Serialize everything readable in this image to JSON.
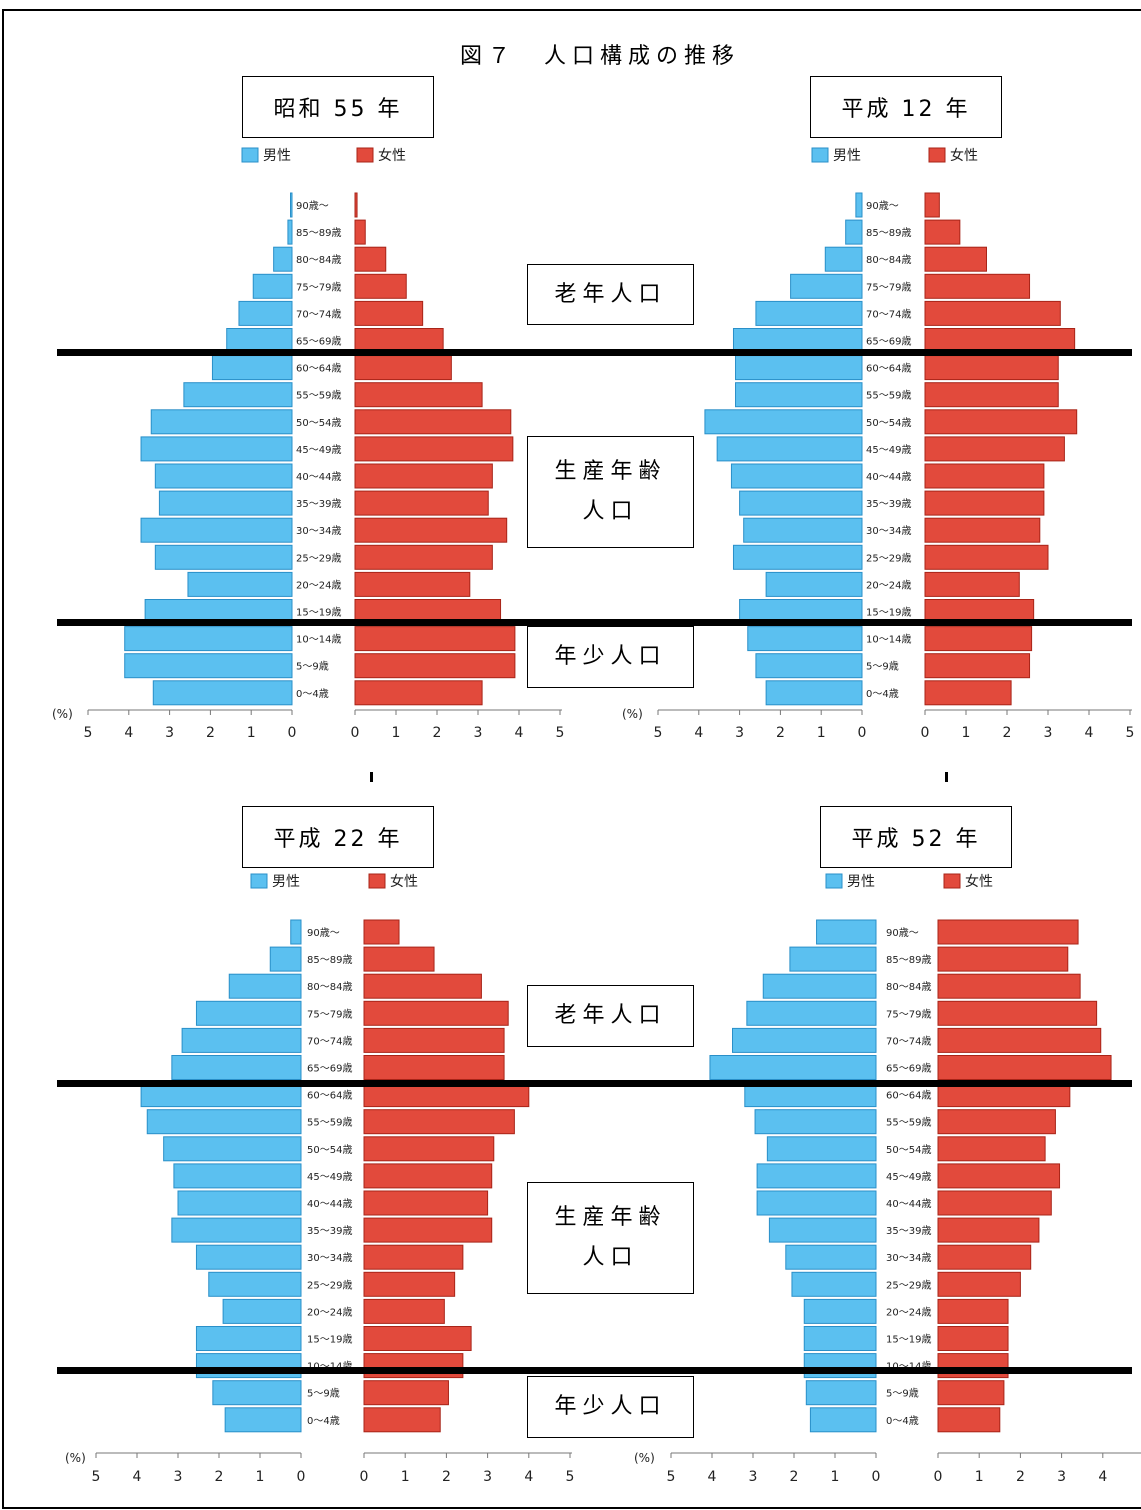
{
  "title": "図７　人口構成の推移",
  "legend": {
    "male": "男性",
    "female": "女性"
  },
  "age_labels": {
    "oldest": "老年人口",
    "working_1": "生産年齢",
    "working_2": "人口",
    "young": "年少人口"
  },
  "colors": {
    "male": "#5bc0f0",
    "male_stroke": "#2a8fc8",
    "female": "#e24a3c",
    "female_stroke": "#a82418",
    "axis": "#777777"
  },
  "chart_data": [
    {
      "type": "bar",
      "title": "昭和 55 年",
      "categories": [
        "90歳～",
        "85～89歳",
        "80～84歳",
        "75～79歳",
        "70～74歳",
        "65～69歳",
        "60～64歳",
        "55～59歳",
        "50～54歳",
        "45～49歳",
        "40～44歳",
        "35～39歳",
        "30～34歳",
        "25～29歳",
        "20～24歳",
        "15～19歳",
        "10～14歳",
        "5～9歳",
        "0～4歳"
      ],
      "series": [
        {
          "name": "男性",
          "values": [
            0.02,
            0.1,
            0.45,
            0.95,
            1.3,
            1.6,
            1.95,
            2.65,
            3.45,
            3.7,
            3.35,
            3.25,
            3.7,
            3.35,
            2.55,
            3.6,
            4.1,
            4.1,
            3.4
          ]
        },
        {
          "name": "女性",
          "values": [
            0.05,
            0.25,
            0.75,
            1.25,
            1.65,
            2.15,
            2.35,
            3.1,
            3.8,
            3.85,
            3.35,
            3.25,
            3.7,
            3.35,
            2.8,
            3.55,
            3.9,
            3.9,
            3.1
          ]
        }
      ],
      "xlabel": "(%)",
      "ticks": [
        "5",
        "4",
        "3",
        "2",
        "1",
        "0"
      ],
      "ticks_right": [
        "0",
        "1",
        "2",
        "3",
        "4",
        "5"
      ],
      "xlim": [
        0,
        5
      ]
    },
    {
      "type": "bar",
      "title": "平成 12 年",
      "categories": [
        "90歳～",
        "85～89歳",
        "80～84歳",
        "75～79歳",
        "70～74歳",
        "65～69歳",
        "60～64歳",
        "55～59歳",
        "50～54歳",
        "45～49歳",
        "40～44歳",
        "35～39歳",
        "30～34歳",
        "25～29歳",
        "20～24歳",
        "15～19歳",
        "10～14歳",
        "5～9歳",
        "0～4歳"
      ],
      "series": [
        {
          "name": "男性",
          "values": [
            0.15,
            0.4,
            0.9,
            1.75,
            2.6,
            3.15,
            3.1,
            3.1,
            3.85,
            3.55,
            3.2,
            3.0,
            2.9,
            3.15,
            2.35,
            3.0,
            2.8,
            2.6,
            2.35
          ]
        },
        {
          "name": "女性",
          "values": [
            0.35,
            0.85,
            1.5,
            2.55,
            3.3,
            3.65,
            3.25,
            3.25,
            3.7,
            3.4,
            2.9,
            2.9,
            2.8,
            3.0,
            2.3,
            2.65,
            2.6,
            2.55,
            2.1
          ]
        }
      ],
      "xlabel": "(%)",
      "ticks": [
        "5",
        "4",
        "3",
        "2",
        "1",
        "0"
      ],
      "ticks_right": [
        "0",
        "1",
        "2",
        "3",
        "4",
        "5"
      ],
      "xlim": [
        0,
        5
      ]
    },
    {
      "type": "bar",
      "title": "平成 22 年",
      "categories": [
        "90歳～",
        "85～89歳",
        "80～84歳",
        "75～79歳",
        "70～74歳",
        "65～69歳",
        "60～64歳",
        "55～59歳",
        "50～54歳",
        "45～49歳",
        "40～44歳",
        "35～39歳",
        "30～34歳",
        "25～29歳",
        "20～24歳",
        "15～19歳",
        "10～14歳",
        "5～9歳",
        "0～4歳"
      ],
      "series": [
        {
          "name": "男性",
          "values": [
            0.25,
            0.75,
            1.75,
            2.55,
            2.9,
            3.15,
            3.9,
            3.75,
            3.35,
            3.1,
            3.0,
            3.15,
            2.55,
            2.25,
            1.9,
            2.55,
            2.55,
            2.15,
            1.85
          ]
        },
        {
          "name": "女性",
          "values": [
            0.85,
            1.7,
            2.85,
            3.5,
            3.4,
            3.4,
            4.0,
            3.65,
            3.15,
            3.1,
            3.0,
            3.1,
            2.4,
            2.2,
            1.95,
            2.6,
            2.4,
            2.05,
            1.85
          ]
        }
      ],
      "xlabel": "(%)",
      "ticks": [
        "5",
        "4",
        "3",
        "2",
        "1",
        "0"
      ],
      "ticks_right": [
        "0",
        "1",
        "2",
        "3",
        "4",
        "5"
      ],
      "xlim": [
        0,
        5
      ]
    },
    {
      "type": "bar",
      "title": "平成 52 年",
      "categories": [
        "90歳～",
        "85～89歳",
        "80～84歳",
        "75～79歳",
        "70～74歳",
        "65～69歳",
        "60～64歳",
        "55～59歳",
        "50～54歳",
        "45～49歳",
        "40～44歳",
        "35～39歳",
        "30～34歳",
        "25～29歳",
        "20～24歳",
        "15～19歳",
        "10～14歳",
        "5～9歳",
        "0～4歳"
      ],
      "series": [
        {
          "name": "男性",
          "values": [
            1.45,
            2.1,
            2.75,
            3.15,
            3.5,
            4.05,
            3.2,
            2.95,
            2.65,
            2.9,
            2.9,
            2.6,
            2.2,
            2.05,
            1.75,
            1.75,
            1.75,
            1.7,
            1.6
          ]
        },
        {
          "name": "女性",
          "values": [
            3.4,
            3.15,
            3.45,
            3.85,
            3.95,
            4.2,
            3.2,
            2.85,
            2.6,
            2.95,
            2.75,
            2.45,
            2.25,
            2.0,
            1.7,
            1.7,
            1.7,
            1.6,
            1.5
          ]
        }
      ],
      "xlabel": "(%)",
      "ticks": [
        "5",
        "4",
        "3",
        "2",
        "1",
        "0"
      ],
      "ticks_right": [
        "0",
        "1",
        "2",
        "3",
        "4"
      ],
      "xlim": [
        0,
        5
      ]
    }
  ]
}
